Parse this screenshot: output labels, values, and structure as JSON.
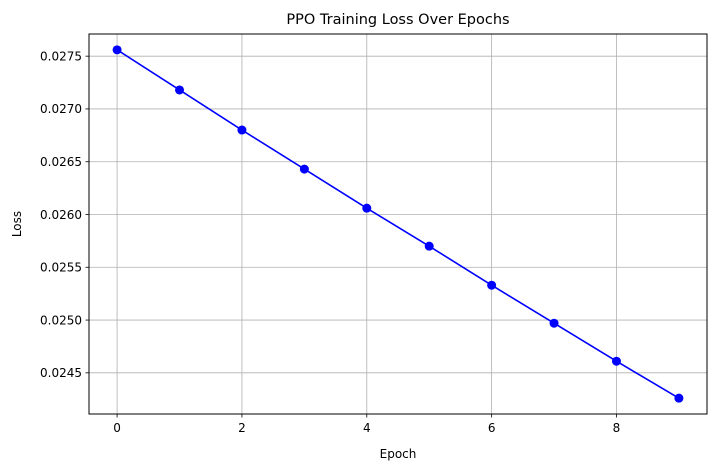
{
  "chart_data": {
    "type": "line",
    "title": "PPO Training Loss Over Epochs",
    "xlabel": "Epoch",
    "ylabel": "Loss",
    "x": [
      0,
      1,
      2,
      3,
      4,
      5,
      6,
      7,
      8,
      9
    ],
    "series": [
      {
        "values": [
          0.02756,
          0.02718,
          0.0268,
          0.02643,
          0.02606,
          0.0257,
          0.02533,
          0.02497,
          0.02461,
          0.02426
        ],
        "color": "#0000ff",
        "marker": "circle"
      }
    ],
    "xlim": [
      -0.45,
      9.45
    ],
    "ylim": [
      0.02411,
      0.02771
    ],
    "xticks": [
      0,
      2,
      4,
      6,
      8
    ],
    "xtick_labels": [
      "0",
      "2",
      "4",
      "6",
      "8"
    ],
    "yticks": [
      0.0245,
      0.025,
      0.0255,
      0.026,
      0.0265,
      0.027,
      0.0275
    ],
    "ytick_labels": [
      "0.0245",
      "0.0250",
      "0.0255",
      "0.0260",
      "0.0265",
      "0.0270",
      "0.0275"
    ],
    "grid": true,
    "grid_color": "#b0b0b0"
  }
}
